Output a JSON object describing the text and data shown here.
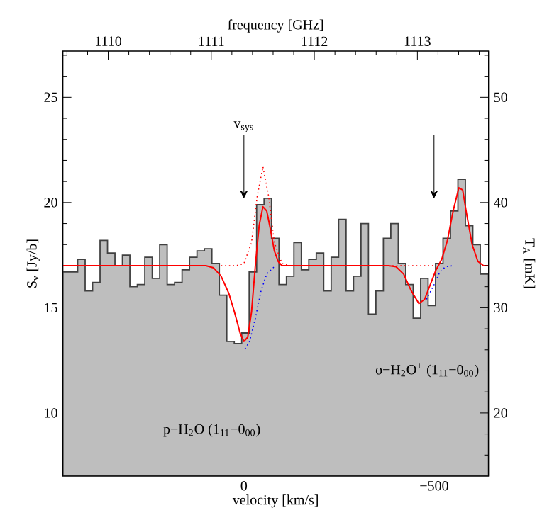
{
  "chart_data": {
    "type": "histogram",
    "xlabel": "velocity [km/s]",
    "ylabel": "S$_{ν}$ [Jy/b]",
    "x2label": "frequency [GHz]",
    "y2label": "T$_{A}$ [mK]",
    "bins": [
      476,
      437,
      417.4,
      397.8,
      378.2,
      358.6,
      339,
      319.4,
      299.8,
      280.2,
      260.6,
      241,
      221.4,
      201.8,
      182.2,
      162.6,
      143,
      123.4,
      103.8,
      84.2,
      64.6,
      45,
      25.4,
      5.8,
      -13.8,
      -33.4,
      -53,
      -72.6,
      -92.2,
      -111.8,
      -131.4,
      -151,
      -170.6,
      -190.2,
      -209.8,
      -229.4,
      -249,
      -268.6,
      -288.2,
      -307.8,
      -327.4,
      -347,
      -366.6,
      -386.2,
      -405.8,
      -425.4,
      -445,
      -464.6,
      -484.2,
      -503.8,
      -523.4,
      -543,
      -562.6,
      -582.2,
      -601.8,
      -621.4,
      -643
    ],
    "values": [
      16.7,
      17.3,
      15.8,
      16.2,
      18.2,
      17.6,
      17.0,
      17.5,
      16.0,
      16.1,
      17.4,
      16.4,
      18.0,
      16.1,
      16.2,
      16.8,
      17.4,
      17.7,
      17.8,
      17.1,
      15.6,
      13.4,
      13.3,
      13.8,
      16.7,
      19.9,
      20.2,
      18.3,
      16.1,
      16.5,
      18.1,
      16.8,
      17.3,
      17.6,
      15.8,
      17.4,
      19.2,
      15.8,
      16.5,
      19.0,
      14.7,
      15.8,
      18.3,
      19.0,
      17.1,
      16.1,
      14.5,
      16.4,
      15.1,
      17.1,
      18.3,
      19.6,
      21.1,
      18.9,
      18.0,
      16.6
    ],
    "color": "#bebebe",
    "series": [
      {
        "type": "line",
        "color": "#0000ff",
        "line_style": "dotted",
        "x": [
          -3,
          -15,
          -30,
          -45,
          -60,
          -80,
          -90,
          -480,
          -500,
          -515,
          -530,
          -550
        ],
        "values": [
          13.05,
          13.4,
          14.5,
          15.8,
          16.6,
          16.95,
          null,
          15.4,
          16.1,
          16.7,
          16.95,
          17.0
        ]
      },
      {
        "type": "line",
        "color": "#ff0000",
        "line_style": "dotted",
        "x": [
          60,
          20,
          0,
          -20,
          -35,
          -50,
          -65,
          -80,
          -100,
          -120,
          -250,
          -380,
          -500
        ],
        "values": [
          17.0,
          17.0,
          17.1,
          18.1,
          20.3,
          21.7,
          20.3,
          18.1,
          17.1,
          17.0,
          null,
          17.0,
          17.0
        ]
      },
      {
        "type": "line",
        "color": "#ff0000",
        "line_style": "solid",
        "x": [
          476,
          100,
          80,
          60,
          40,
          25,
          10,
          0,
          -10,
          -20,
          -30,
          -40,
          -50,
          -60,
          -70,
          -80,
          -90,
          -100,
          -380,
          -400,
          -420,
          -440,
          -460,
          -475,
          -490,
          -505,
          -520,
          -535,
          -550,
          -565,
          -575,
          -585,
          -600,
          -615,
          -630,
          -643
        ],
        "values": [
          17.0,
          17.0,
          16.9,
          16.5,
          15.7,
          14.8,
          13.8,
          13.4,
          13.6,
          14.8,
          17.0,
          18.9,
          19.8,
          19.6,
          18.7,
          17.7,
          17.2,
          17.0,
          17.0,
          16.95,
          16.6,
          15.8,
          15.2,
          15.4,
          16.1,
          16.8,
          17.3,
          18.2,
          19.6,
          20.7,
          20.6,
          19.5,
          18.0,
          17.2,
          17.0,
          17.0
        ]
      }
    ],
    "annotations": [
      "v$_{sys}$",
      "o−H$_{2}$O$^{+}$ (1$_{11}$−0$_{00}$)",
      "p−H$_{2}$O (1$_{11}$−0$_{00}$)"
    ],
    "xlim": [
      476,
      -643
    ],
    "ylim": [
      7,
      27.2
    ],
    "x2lim": [
      1109.56,
      1113.69
    ],
    "y2lim": [
      14,
      54.4
    ],
    "xticks": [
      {
        "value": 400,
        "label": null
      },
      {
        "value": 300,
        "label": null
      },
      {
        "value": 200,
        "label": null
      },
      {
        "value": 100,
        "label": null
      },
      0,
      {
        "value": -100,
        "label": null
      },
      {
        "value": -200,
        "label": null
      },
      {
        "value": -300,
        "label": null
      },
      {
        "value": -400,
        "label": null
      },
      {
        "value": -500,
        "label": "−500"
      },
      {
        "value": -600,
        "label": null
      }
    ],
    "yticks": [
      {
        "value": 8,
        "label": null
      },
      {
        "value": 9,
        "label": null
      },
      10,
      {
        "value": 11,
        "label": null
      },
      {
        "value": 12,
        "label": null
      },
      {
        "value": 13,
        "label": null
      },
      {
        "value": 14,
        "label": null
      },
      15,
      {
        "value": 16,
        "label": null
      },
      {
        "value": 17,
        "label": null
      },
      {
        "value": 18,
        "label": null
      },
      {
        "value": 19,
        "label": null
      },
      20,
      {
        "value": 21,
        "label": null
      },
      {
        "value": 22,
        "label": null
      },
      {
        "value": 23,
        "label": null
      },
      {
        "value": 24,
        "label": null
      },
      25,
      {
        "value": 26,
        "label": null
      },
      {
        "value": 27,
        "label": null
      }
    ],
    "x2ticks": [
      {
        "value": 1109.6,
        "label": null
      },
      {
        "value": 1109.8,
        "label": null
      },
      1110,
      {
        "value": 1110.2,
        "label": null
      },
      {
        "value": 1110.4,
        "label": null
      },
      {
        "value": 1110.6,
        "label": null
      },
      {
        "value": 1110.8,
        "label": null
      },
      1111,
      {
        "value": 1111.2,
        "label": null
      },
      {
        "value": 1111.4,
        "label": null
      },
      {
        "value": 1111.6,
        "label": null
      },
      {
        "value": 1111.8,
        "label": null
      },
      1112,
      {
        "value": 1112.2,
        "label": null
      },
      {
        "value": 1112.4,
        "label": null
      },
      {
        "value": 1112.6,
        "label": null
      },
      {
        "value": 1112.8,
        "label": null
      },
      1113,
      {
        "value": 1113.2,
        "label": null
      },
      {
        "value": 1113.4,
        "label": null
      },
      {
        "value": 1113.6,
        "label": null
      }
    ],
    "y2ticks": [
      {
        "value": 16,
        "label": null
      },
      {
        "value": 18,
        "label": null
      },
      20,
      {
        "value": 22,
        "label": null
      },
      {
        "value": 24,
        "label": null
      },
      {
        "value": 26,
        "label": null
      },
      {
        "value": 28,
        "label": null
      },
      30,
      {
        "value": 32,
        "label": null
      },
      {
        "value": 34,
        "label": null
      },
      {
        "value": 36,
        "label": null
      },
      {
        "value": 38,
        "label": null
      },
      40,
      {
        "value": 42,
        "label": null
      },
      {
        "value": 44,
        "label": null
      },
      {
        "value": 46,
        "label": null
      },
      {
        "value": 48,
        "label": null
      },
      50,
      {
        "value": 52,
        "label": null
      },
      {
        "value": 54,
        "label": null
      }
    ]
  }
}
